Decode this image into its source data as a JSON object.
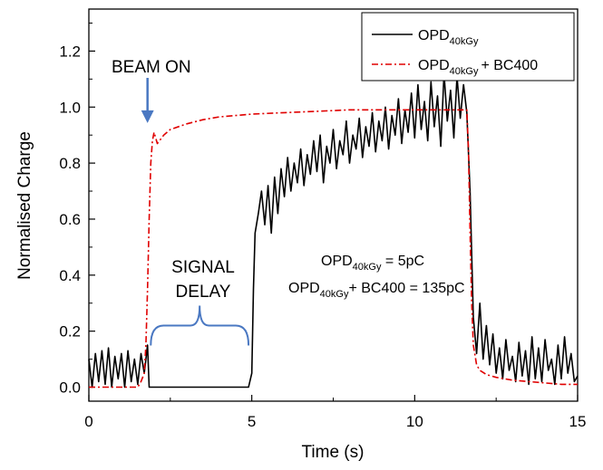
{
  "chart_data": {
    "type": "line",
    "title": "",
    "xlabel": "Time (s)",
    "ylabel": "Normalised Charge",
    "xlim": [
      0,
      15
    ],
    "ylim": [
      -0.05,
      1.35
    ],
    "xticks": [
      "0",
      "5",
      "10",
      "15"
    ],
    "yticks": [
      "0.0",
      "0.2",
      "0.4",
      "0.6",
      "0.8",
      "1.0",
      "1.2"
    ],
    "grid": false,
    "legend_position": "top-right",
    "series": [
      {
        "name_main": "OPD",
        "name_sub": "40kGy",
        "name_suffix": "",
        "color": "#000000",
        "style": "solid",
        "x": [
          0,
          0.1,
          0.2,
          0.3,
          0.4,
          0.5,
          0.6,
          0.7,
          0.8,
          0.9,
          1.0,
          1.1,
          1.2,
          1.3,
          1.4,
          1.5,
          1.6,
          1.7,
          1.8,
          1.85,
          2.0,
          3.0,
          4.0,
          4.9,
          5.0,
          5.05,
          5.1,
          5.2,
          5.3,
          5.4,
          5.5,
          5.6,
          5.7,
          5.8,
          5.9,
          6.0,
          6.1,
          6.2,
          6.3,
          6.4,
          6.5,
          6.6,
          6.7,
          6.8,
          6.9,
          7.0,
          7.1,
          7.2,
          7.3,
          7.4,
          7.5,
          7.6,
          7.7,
          7.8,
          7.9,
          8.0,
          8.1,
          8.2,
          8.3,
          8.4,
          8.5,
          8.6,
          8.7,
          8.8,
          8.9,
          9.0,
          9.1,
          9.2,
          9.3,
          9.4,
          9.5,
          9.6,
          9.7,
          9.8,
          9.9,
          10.0,
          10.1,
          10.2,
          10.3,
          10.4,
          10.5,
          10.6,
          10.7,
          10.8,
          10.9,
          11.0,
          11.1,
          11.2,
          11.3,
          11.4,
          11.5,
          11.6,
          11.7,
          11.8,
          11.9,
          12.0,
          12.1,
          12.2,
          12.3,
          12.4,
          12.5,
          12.6,
          12.7,
          12.8,
          12.9,
          13.0,
          13.1,
          13.2,
          13.3,
          13.4,
          13.5,
          13.6,
          13.7,
          13.8,
          13.9,
          14.0,
          14.1,
          14.2,
          14.3,
          14.4,
          14.5,
          14.6,
          14.7,
          14.8,
          14.9,
          15.0
        ],
        "y": [
          0.1,
          0.0,
          0.12,
          0.02,
          0.13,
          0.01,
          0.14,
          0.0,
          0.11,
          0.03,
          0.12,
          0.0,
          0.13,
          0.02,
          0.1,
          0.01,
          0.12,
          0.05,
          0.15,
          0.0,
          0.0,
          0.0,
          0.0,
          0.0,
          0.05,
          0.35,
          0.55,
          0.62,
          0.7,
          0.58,
          0.72,
          0.55,
          0.75,
          0.62,
          0.78,
          0.68,
          0.82,
          0.7,
          0.8,
          0.73,
          0.85,
          0.72,
          0.83,
          0.76,
          0.88,
          0.77,
          0.9,
          0.73,
          0.86,
          0.8,
          0.92,
          0.78,
          0.88,
          0.83,
          0.95,
          0.8,
          0.9,
          0.85,
          0.96,
          0.82,
          0.93,
          0.86,
          0.98,
          0.84,
          0.95,
          0.88,
          1.0,
          0.85,
          0.97,
          0.9,
          1.03,
          0.87,
          0.99,
          0.91,
          1.05,
          0.89,
          1.08,
          0.92,
          1.02,
          0.88,
          1.09,
          0.93,
          1.04,
          0.86,
          1.12,
          0.95,
          1.06,
          0.89,
          1.11,
          0.96,
          1.08,
          0.98,
          0.7,
          0.25,
          0.12,
          0.3,
          0.1,
          0.22,
          0.08,
          0.19,
          0.05,
          0.14,
          0.03,
          0.17,
          0.06,
          0.11,
          0.02,
          0.16,
          0.04,
          0.13,
          0.01,
          0.18,
          0.03,
          0.14,
          0.02,
          0.17,
          0.06,
          0.1,
          0.01,
          0.15,
          0.03,
          0.18,
          0.05,
          0.12,
          0.02,
          0.04
        ]
      },
      {
        "name_main": "OPD",
        "name_sub": "40kGy",
        "name_suffix": "+ BC400",
        "color": "#e00000",
        "style": "dashdot",
        "x": [
          0,
          1.0,
          1.5,
          1.6,
          1.7,
          1.75,
          1.8,
          1.85,
          1.9,
          1.95,
          2.0,
          2.1,
          2.3,
          2.5,
          3.0,
          3.5,
          4.0,
          5.0,
          6.0,
          7.0,
          8.0,
          9.0,
          10.0,
          11.0,
          11.5,
          11.6,
          11.65,
          11.7,
          11.75,
          11.8,
          11.9,
          12.0,
          12.2,
          12.5,
          13.0,
          13.5,
          14.0,
          14.5,
          15.0
        ],
        "y": [
          0.0,
          0.0,
          0.0,
          0.02,
          0.05,
          0.15,
          0.35,
          0.6,
          0.8,
          0.88,
          0.91,
          0.87,
          0.9,
          0.92,
          0.94,
          0.955,
          0.965,
          0.975,
          0.98,
          0.985,
          0.99,
          0.99,
          0.99,
          0.99,
          0.99,
          0.99,
          0.85,
          0.55,
          0.3,
          0.15,
          0.08,
          0.06,
          0.045,
          0.035,
          0.025,
          0.02,
          0.015,
          0.01,
          0.01
        ]
      }
    ],
    "annotations": {
      "beam_on": "BEAM ON",
      "beam_on_x": 1.8,
      "beam_on_y": 0.93,
      "signal_delay_line1": "SIGNAL",
      "signal_delay_line2": "DELAY",
      "signal_delay_x": [
        1.9,
        4.9
      ],
      "signal_delay_y": 0.22,
      "charge_line1": {
        "main": "OPD",
        "sub": "40kGy",
        "suffix": " = 5pC"
      },
      "charge_line2": {
        "main": "OPD",
        "sub": "40kGy",
        "suffix": "+ BC400 = 135pC"
      }
    },
    "colors": {
      "arrow": "#4a78c2",
      "brace": "#4a78c2"
    }
  }
}
